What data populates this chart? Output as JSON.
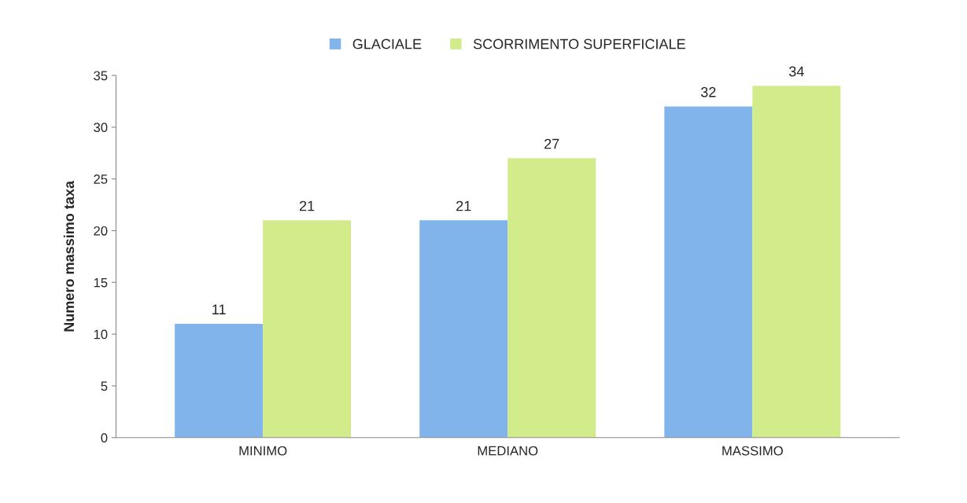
{
  "chart_data": {
    "type": "bar",
    "ylabel": "Numero massimo taxa",
    "categories": [
      "MINIMO",
      "MEDIANO",
      "MASSIMO"
    ],
    "series": [
      {
        "name": "GLACIALE",
        "color": "#80b4ea",
        "values": [
          11,
          21,
          32
        ]
      },
      {
        "name": "SCORRIMENTO SUPERFICIALE",
        "color": "#d2ec8c",
        "values": [
          21,
          27,
          34
        ]
      }
    ],
    "ylim": [
      0,
      35
    ],
    "yticks": [
      0,
      5,
      10,
      15,
      20,
      25,
      30,
      35
    ],
    "data_labels": true,
    "legend": "top",
    "grid": false
  }
}
